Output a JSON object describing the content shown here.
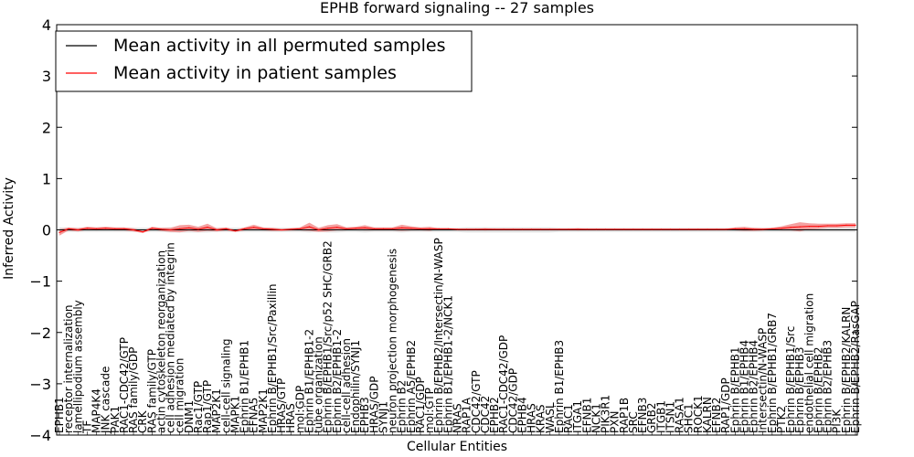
{
  "chart_data": {
    "type": "line",
    "title": "EPHB forward signaling -- 27 samples",
    "xlabel": "Cellular Entities",
    "ylabel": "Inferred Activity",
    "ylim": [
      -4,
      4
    ],
    "yticks": [
      -4,
      -3,
      -2,
      -1,
      0,
      1,
      2,
      3,
      4
    ],
    "legend_position": "top-left",
    "legend": [
      {
        "label": "Mean activity in all permuted samples",
        "color": "#000000"
      },
      {
        "label": "Mean activity in patient samples",
        "color": "#ff0000"
      }
    ],
    "colors": {
      "patient": "#ff0000",
      "patient_band": "#f08080",
      "permuted": "#000000",
      "permuted_band": "#c8c8c8"
    },
    "categories": [
      "EPHB1",
      "receptor internalization",
      "lamellipodium assembly",
      "TF",
      "MAP4K4",
      "JNK cascade",
      "PAK1",
      "RAC1-CDC42/GTP",
      "RAS family/GDP",
      "CRK",
      "RAS family/GTP",
      "actin cytoskeleton reorganization",
      "cell adhesion mediated by integrin",
      "cell migration",
      "DNM1",
      "Rac1/GTP",
      "Rap1/GTP",
      "MAP2K1",
      "cell-cell signaling",
      "MAPK1",
      "Ephrin B1/EPHB1",
      "EFNA5",
      "MAP2K1",
      "Ephrin B/EPHB1/Src/Paxillin",
      "HRAS/GTP",
      "HRAS",
      "mol:GDP",
      "Ephrin B1/EPHB1-2",
      "tube organization",
      "Ephrin B/EPHB1/Src/p52 SHC/GRB2",
      "Ephrin B2/EPHB1-2",
      "cell-cell adhesion",
      "Endophilin/SYNJ1",
      "EPHB3",
      "HRAS/GDP",
      "SYNJ1",
      "neuron projection morphogenesis",
      "Ephrin B2",
      "Ephrin A5/EPHB2",
      "RAC1/GDP",
      "mol:GTP",
      "Ephrin B/EPHB2/Intersectin/N-WASP",
      "Ephrin B1/EPHB1-2/NCK1",
      "NRAS",
      "RAP1A",
      "CDC42/GTP",
      "CDC42",
      "EPHB2",
      "RAC1-CDC42/GDP",
      "CDC42/GDP",
      "EPHB4",
      "HRAS",
      "KRAS",
      "WASL",
      "Ephrin B1/EPHB3",
      "RAC1",
      "ITGA1",
      "EFNB1",
      "NCK1",
      "PIK3R1",
      "PXN",
      "RAP1B",
      "SRC",
      "EFNB3",
      "GRB2",
      "ITGB1",
      "ITSN1",
      "RASA1",
      "SHC1",
      "ROCK1",
      "KALRN",
      "EFNB2",
      "RAP1/GDP",
      "Ephrin B/EPHB1",
      "Ephrin B1/EPHB4",
      "Ephrin B2/EPHB4",
      "Intersectin/N-WASP",
      "Ephrin B/EPHB1/GRB7",
      "PTK2",
      "Ephrin B/EPHB1/Src",
      "Ephrin B/EPHB3",
      "endothelial cell migration",
      "Ephrin B/EPHB2",
      "Ephrin B2/EPHB3",
      "PI3K",
      "Ephrin B/EPHB2/KALRN",
      "Ephrin B/EPHB2/RasGAP"
    ],
    "series": [
      {
        "name": "Mean activity in all permuted samples",
        "values": [
          0,
          0,
          0,
          0,
          0,
          0,
          0,
          0,
          0,
          0,
          0,
          0,
          0,
          0,
          0,
          0,
          0,
          0,
          0,
          0,
          0,
          0,
          0,
          0,
          0,
          0,
          0,
          0,
          0,
          0,
          0,
          0,
          0,
          0,
          0,
          0,
          0,
          0,
          0,
          0,
          0,
          0,
          0,
          0,
          0,
          0,
          0,
          0,
          0,
          0,
          0,
          0,
          0,
          0,
          0,
          0,
          0,
          0,
          0,
          0,
          0,
          0,
          0,
          0,
          0,
          0,
          0,
          0,
          0,
          0,
          0,
          0,
          0,
          0,
          0,
          0,
          0,
          0,
          0,
          0,
          0,
          0,
          0,
          0,
          0,
          0,
          0
        ]
      },
      {
        "name": "Mean activity in patient samples",
        "values": [
          -0.05,
          0.02,
          0,
          0.03,
          0.02,
          0.03,
          0.02,
          0.02,
          0,
          -0.04,
          0.03,
          0.01,
          0,
          0.02,
          0.04,
          0.01,
          0.05,
          0,
          0.02,
          -0.02,
          0.02,
          0.05,
          0.02,
          0.01,
          0,
          0.01,
          0.02,
          0.06,
          0,
          0.03,
          0.05,
          0.02,
          0.03,
          0.04,
          0.02,
          0.02,
          0.02,
          0.04,
          0.03,
          0.02,
          0.02,
          0.02,
          0.02,
          0.01,
          0.01,
          0.01,
          0.01,
          0.01,
          0.01,
          0.01,
          0.01,
          0.01,
          0.01,
          0.01,
          0.01,
          0.01,
          0.01,
          0.01,
          0.01,
          0.01,
          0.01,
          0.01,
          0.01,
          0.01,
          0.01,
          0.01,
          0.01,
          0.01,
          0.01,
          0.01,
          0.01,
          0.01,
          0.01,
          0.02,
          0.02,
          0.01,
          0.01,
          0.02,
          0.03,
          0.05,
          0.06,
          0.07,
          0.07,
          0.08,
          0.08,
          0.09,
          0.09
        ]
      },
      {
        "name": "Patient spread",
        "values": [
          0.06,
          0.03,
          0.03,
          0.03,
          0.03,
          0.03,
          0.03,
          0.03,
          0.03,
          0.02,
          0.03,
          0.03,
          0.04,
          0.07,
          0.06,
          0.05,
          0.07,
          0.03,
          0.03,
          0.02,
          0.03,
          0.05,
          0.03,
          0.03,
          0.02,
          0.02,
          0.03,
          0.08,
          0.04,
          0.06,
          0.06,
          0.03,
          0.03,
          0.05,
          0.03,
          0.03,
          0.03,
          0.06,
          0.04,
          0.03,
          0.04,
          0.01,
          0.01,
          0.01,
          0.01,
          0.01,
          0.02,
          0.01,
          0.01,
          0.01,
          0.01,
          0.01,
          0.01,
          0.01,
          0.01,
          0.01,
          0.02,
          0.01,
          0.01,
          0.01,
          0.01,
          0.01,
          0.01,
          0.01,
          0.01,
          0.01,
          0.01,
          0.01,
          0.01,
          0.01,
          0.01,
          0.01,
          0.01,
          0.03,
          0.04,
          0.03,
          0.02,
          0.02,
          0.04,
          0.06,
          0.09,
          0.06,
          0.05,
          0.04,
          0.04,
          0.04,
          0.04
        ]
      },
      {
        "name": "Permuted spread",
        "values": [
          0.05,
          0.04,
          0.04,
          0.04,
          0.04,
          0.04,
          0.04,
          0.04,
          0.04,
          0.04,
          0.04,
          0.04,
          0.05,
          0.05,
          0.05,
          0.05,
          0.05,
          0.04,
          0.04,
          0.04,
          0.04,
          0.04,
          0.04,
          0.04,
          0.04,
          0.04,
          0.04,
          0.05,
          0.04,
          0.05,
          0.05,
          0.04,
          0.04,
          0.05,
          0.04,
          0.04,
          0.04,
          0.05,
          0.04,
          0.04,
          0.04,
          0.04,
          0.04,
          0.04,
          0.05,
          0.05,
          0.05,
          0.05,
          0.05,
          0.05,
          0.05,
          0.05,
          0.05,
          0.05,
          0.04,
          0.04,
          0.04,
          0.04,
          0.04,
          0.04,
          0.04,
          0.04,
          0.04,
          0.04,
          0.04,
          0.04,
          0.04,
          0.04,
          0.04,
          0.04,
          0.04,
          0.04,
          0.04,
          0.04,
          0.04,
          0.04,
          0.04,
          0.04,
          0.04,
          0.04,
          0.04,
          0.04,
          0.04,
          0.04,
          0.04,
          0.04,
          0.04
        ]
      }
    ]
  }
}
